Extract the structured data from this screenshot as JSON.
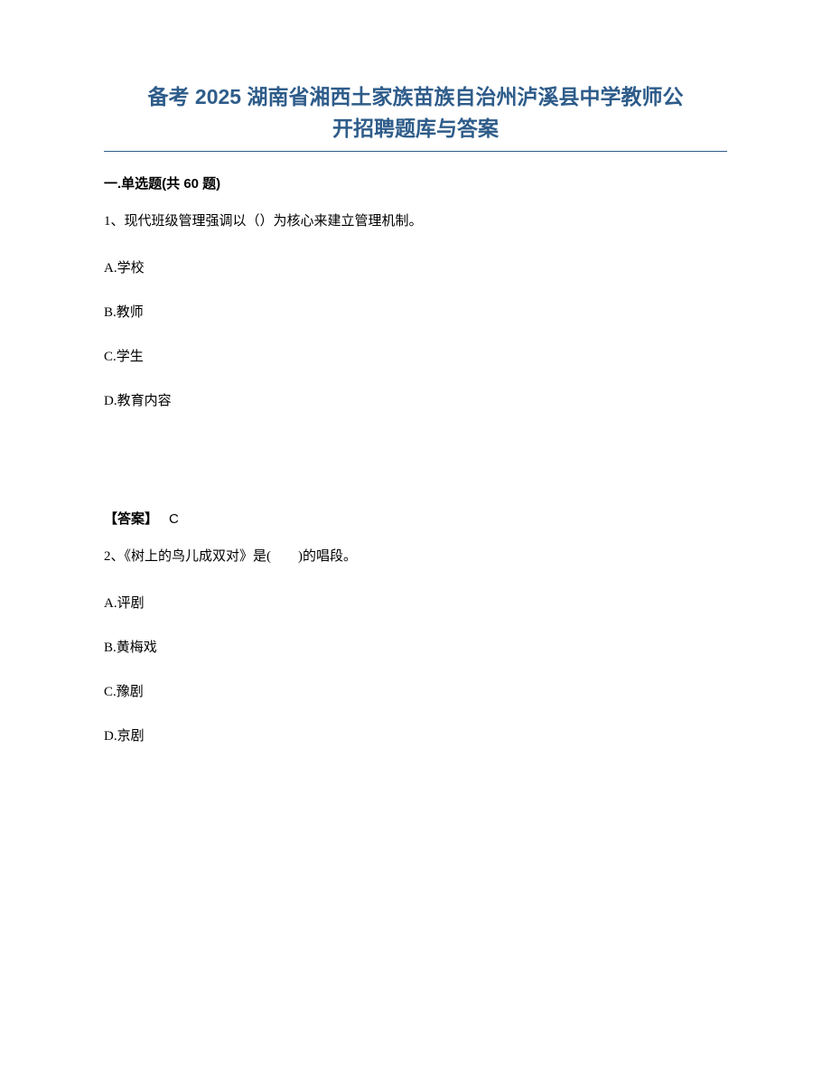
{
  "title_line1": "备考 2025 湖南省湘西土家族苗族自治州泸溪县中学教师公",
  "title_line2": "开招聘题库与答案",
  "section_header": "一.单选题(共 60 题)",
  "q1": {
    "number": "1、",
    "text": "现代班级管理强调以（）为核心来建立管理机制。",
    "options": {
      "A": "A.学校",
      "B": "B.教师",
      "C": "C.学生",
      "D": "D.教育内容"
    },
    "answer_label": "【答案】",
    "answer_value": "C"
  },
  "q2": {
    "number": "2、",
    "text": "《树上的鸟儿成双对》是(　　)的唱段。",
    "options": {
      "A": "A.评剧",
      "B": "B.黄梅戏",
      "C": "C.豫剧",
      "D": "D.京剧"
    }
  },
  "styles": {
    "title_color": "#2e5c8a",
    "text_color": "#000000",
    "background_color": "#ffffff",
    "title_fontsize": 23,
    "body_fontsize": 15
  }
}
